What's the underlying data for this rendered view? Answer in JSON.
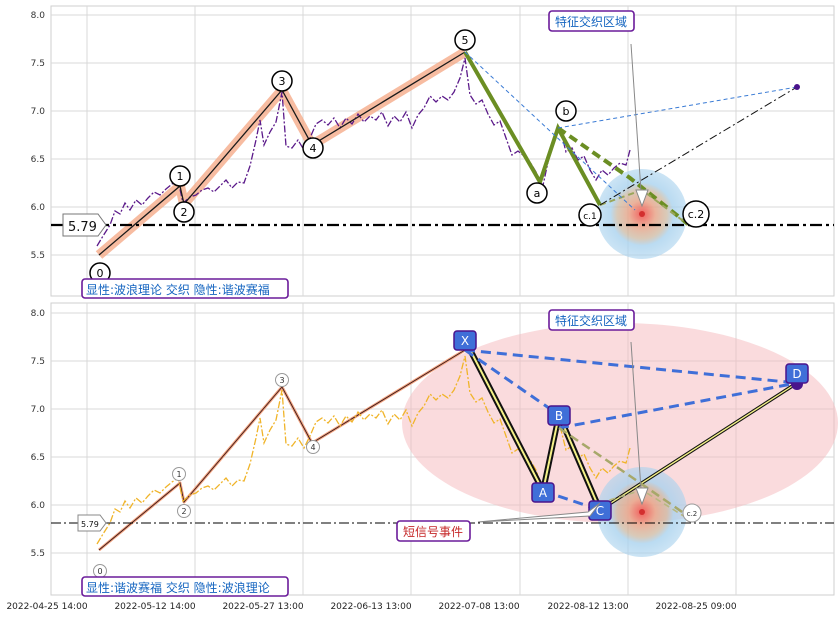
{
  "chart_data": [
    {
      "type": "line",
      "panel": "top",
      "ylim": [
        5.0,
        8.05
      ],
      "y_ticks": [
        "8.0",
        "7.5",
        "7.0",
        "6.5",
        "6.0",
        "5.5"
      ],
      "grid": true,
      "reference_line": {
        "value": 5.79,
        "label": "5.79"
      },
      "caption": "显性:波浪理论 交织 隐性:谐波赛福",
      "zone_label": "特征交织区域",
      "wave_labels": [
        "0",
        "1",
        "2",
        "3",
        "4",
        "5",
        "a",
        "b",
        "c.1",
        "c.2"
      ],
      "wave_points": [
        {
          "label": "0",
          "x": "2022-04-25 14:00",
          "y": 5.52
        },
        {
          "label": "1",
          "x": "2022-05-09",
          "y": 6.21
        },
        {
          "label": "2",
          "x": "2022-05-10",
          "y": 6.02
        },
        {
          "label": "3",
          "x": "2022-05-27 13:00",
          "y": 7.22
        },
        {
          "label": "4",
          "x": "2022-06-01",
          "y": 6.64
        },
        {
          "label": "5",
          "x": "2022-07-08 13:00",
          "y": 7.59
        },
        {
          "label": "a",
          "x": "2022-08-01",
          "y": 6.26
        },
        {
          "label": "b",
          "x": "2022-08-04",
          "y": 6.83
        },
        {
          "label": "c.1",
          "x": "2022-08-12 13:00",
          "y": 6.02
        },
        {
          "label": "c.2",
          "x": "2022-08-25",
          "y": 5.81
        }
      ],
      "projection_end": {
        "x": "2022-09-12",
        "y": 7.25
      }
    },
    {
      "type": "line",
      "panel": "bottom",
      "ylim": [
        5.0,
        8.05
      ],
      "y_ticks": [
        "8.0",
        "7.5",
        "7.0",
        "6.5",
        "6.0",
        "5.5"
      ],
      "x_ticks": [
        "2022-04-25 14:00",
        "2022-05-12 14:00",
        "2022-05-27 13:00",
        "2022-06-13 13:00",
        "2022-07-08 13:00",
        "2022-08-12 13:00",
        "2022-08-25 09:00"
      ],
      "grid": true,
      "reference_line": {
        "value": 5.79,
        "label": "5.79"
      },
      "caption": "显性:谐波赛福 交织 隐性:波浪理论",
      "zone_label": "特征交织区域",
      "signal_label": "短信号事件",
      "wave_labels": [
        "0",
        "1",
        "2",
        "3",
        "4",
        "c.2"
      ],
      "harmonic_labels": [
        "X",
        "A",
        "B",
        "C",
        "D"
      ],
      "harmonic_points": [
        {
          "label": "X",
          "x": "2022-07-08 13:00",
          "y": 7.59
        },
        {
          "label": "A",
          "x": "2022-08-01",
          "y": 6.26
        },
        {
          "label": "B",
          "x": "2022-08-04",
          "y": 6.83
        },
        {
          "label": "C",
          "x": "2022-08-12 13:00",
          "y": 6.02
        },
        {
          "label": "D",
          "x": "2022-09-12",
          "y": 7.25
        }
      ]
    }
  ]
}
